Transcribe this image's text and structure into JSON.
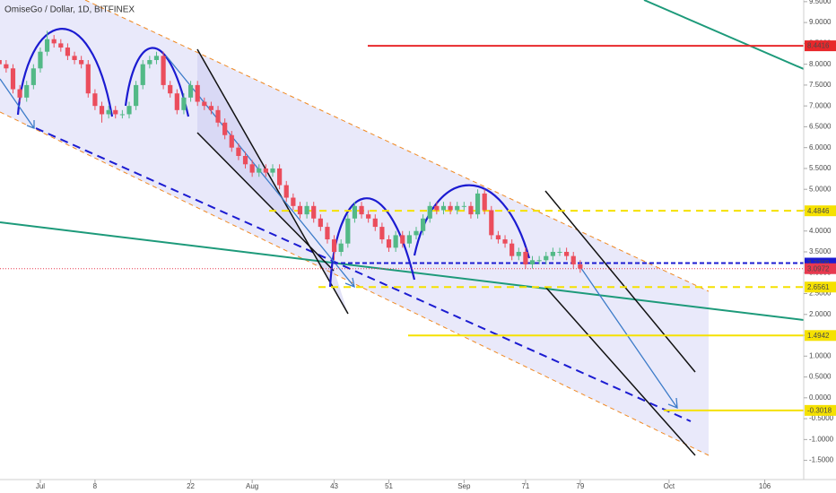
{
  "chart_data": {
    "type": "candlestick",
    "title": "OmiseGo / Dollar, 1D, BITFINEX",
    "up_color": "#53b987",
    "down_color": "#eb4d5c",
    "x": [
      -6,
      -5,
      -4,
      -3,
      -2,
      -1,
      0,
      1,
      2,
      3,
      4,
      5,
      6,
      7,
      8,
      9,
      10,
      11,
      12,
      13,
      14,
      15,
      16,
      17,
      18,
      19,
      20,
      21,
      22,
      23,
      24,
      25,
      26,
      27,
      28,
      29,
      30,
      31,
      32,
      33,
      34,
      35,
      36,
      37,
      38,
      39,
      40,
      41,
      42,
      43,
      44,
      45,
      46,
      47,
      48,
      49,
      50,
      51,
      52,
      53,
      54,
      55,
      56,
      57,
      58,
      59,
      60,
      61,
      62,
      63,
      64,
      65,
      66,
      67,
      68,
      69,
      70,
      71,
      72,
      73,
      74,
      75,
      76,
      77,
      78,
      79
    ],
    "open": [
      8.1,
      8.0,
      7.9,
      7.4,
      7.2,
      7.5,
      7.9,
      8.3,
      8.6,
      8.5,
      8.4,
      8.2,
      8.1,
      8.0,
      7.3,
      7.0,
      6.8,
      6.9,
      6.8,
      6.8,
      7.0,
      7.5,
      8.0,
      8.1,
      8.2,
      7.5,
      7.3,
      6.9,
      7.2,
      7.5,
      7.1,
      7.0,
      6.9,
      6.6,
      6.3,
      6.0,
      5.8,
      5.6,
      5.4,
      5.5,
      5.4,
      5.5,
      5.1,
      4.8,
      4.6,
      4.4,
      4.6,
      4.3,
      4.1,
      3.8,
      3.5,
      3.7,
      4.3,
      4.6,
      4.4,
      4.3,
      4.1,
      3.8,
      3.6,
      3.9,
      3.7,
      3.9,
      4.0,
      4.3,
      4.6,
      4.5,
      4.6,
      4.5,
      4.6,
      4.6,
      4.4,
      4.9,
      4.5,
      3.9,
      3.8,
      3.7,
      3.4,
      3.5,
      3.2,
      3.3,
      3.3,
      3.4,
      3.5,
      3.5,
      3.4,
      3.2
    ],
    "high": [
      8.2,
      8.1,
      8.0,
      7.5,
      7.6,
      8.0,
      8.4,
      8.8,
      8.7,
      8.6,
      8.5,
      8.3,
      8.2,
      8.1,
      7.4,
      7.1,
      7.0,
      7.0,
      6.9,
      7.1,
      7.6,
      8.1,
      8.2,
      8.3,
      8.3,
      7.6,
      7.4,
      7.3,
      7.6,
      7.6,
      7.2,
      7.1,
      7.0,
      6.7,
      6.4,
      6.1,
      5.9,
      5.7,
      5.6,
      5.6,
      5.6,
      5.6,
      5.2,
      4.9,
      4.7,
      4.7,
      4.7,
      4.4,
      4.2,
      3.9,
      3.8,
      4.4,
      4.7,
      4.7,
      4.5,
      4.4,
      4.2,
      3.9,
      4.0,
      4.0,
      4.0,
      4.1,
      4.4,
      4.7,
      4.7,
      4.7,
      4.7,
      4.7,
      4.7,
      4.7,
      5.0,
      5.0,
      4.6,
      4.0,
      3.9,
      3.8,
      3.6,
      3.6,
      3.4,
      3.4,
      3.5,
      3.6,
      3.6,
      3.6,
      3.5,
      3.3
    ],
    "low": [
      7.9,
      7.8,
      7.3,
      7.1,
      7.1,
      7.4,
      7.8,
      8.2,
      8.4,
      8.3,
      8.1,
      8.0,
      7.9,
      7.2,
      6.9,
      6.6,
      6.7,
      6.7,
      6.7,
      6.7,
      6.9,
      7.4,
      7.9,
      8.0,
      7.4,
      7.2,
      6.8,
      6.8,
      7.1,
      7.0,
      6.9,
      6.8,
      6.5,
      6.2,
      5.9,
      5.7,
      5.5,
      5.3,
      5.3,
      5.3,
      5.3,
      5.0,
      4.7,
      4.5,
      4.3,
      4.3,
      4.2,
      4.0,
      3.7,
      3.3,
      3.4,
      3.6,
      4.2,
      4.3,
      4.2,
      4.0,
      3.7,
      3.5,
      3.5,
      3.6,
      3.6,
      3.8,
      3.9,
      4.2,
      4.4,
      4.4,
      4.4,
      4.4,
      4.5,
      4.3,
      4.3,
      4.4,
      3.8,
      3.7,
      3.6,
      3.3,
      3.3,
      3.1,
      3.1,
      3.2,
      3.2,
      3.3,
      3.4,
      3.3,
      3.1,
      3.0
    ],
    "close": [
      8.0,
      7.9,
      7.4,
      7.2,
      7.5,
      7.9,
      8.3,
      8.6,
      8.5,
      8.4,
      8.2,
      8.1,
      8.0,
      7.3,
      7.0,
      6.8,
      6.9,
      6.8,
      6.8,
      7.0,
      7.5,
      8.0,
      8.1,
      8.2,
      7.5,
      7.3,
      6.9,
      7.2,
      7.5,
      7.1,
      7.0,
      6.9,
      6.6,
      6.3,
      6.0,
      5.8,
      5.6,
      5.4,
      5.5,
      5.4,
      5.5,
      5.1,
      4.8,
      4.6,
      4.4,
      4.6,
      4.3,
      4.1,
      3.8,
      3.5,
      3.7,
      4.3,
      4.6,
      4.4,
      4.3,
      4.1,
      3.8,
      3.6,
      3.9,
      3.7,
      3.9,
      4.0,
      4.3,
      4.6,
      4.5,
      4.6,
      4.5,
      4.6,
      4.6,
      4.4,
      4.9,
      4.5,
      3.9,
      3.8,
      3.7,
      3.4,
      3.5,
      3.2,
      3.3,
      3.3,
      3.4,
      3.5,
      3.5,
      3.4,
      3.2,
      3.1
    ],
    "xlim": [
      -5.9,
      111.7
    ],
    "xticks": [
      {
        "value": 0,
        "label": "Jul"
      },
      8,
      22,
      {
        "value": 31,
        "label": "Aug"
      },
      43,
      51,
      {
        "value": 62,
        "label": "Sep"
      },
      71,
      79,
      {
        "value": 92,
        "label": "Oct"
      },
      106
    ],
    "ylim": [
      -1.96,
      9.54
    ],
    "yticks": [
      {
        "value": -1.5,
        "label": "-1.5000"
      },
      {
        "value": -1,
        "label": "-1.0000"
      },
      {
        "value": -0.5,
        "label": "-0.5000"
      },
      {
        "value": 0,
        "label": "0.0000"
      },
      {
        "value": 0.5,
        "label": "0.5000"
      },
      {
        "value": 1,
        "label": "1.0000"
      },
      {
        "value": 1.5,
        "label": "1.5000"
      },
      {
        "value": 2,
        "label": "2.0000"
      },
      {
        "value": 2.5,
        "label": "2.5000"
      },
      {
        "value": 3,
        "label": "3.0000"
      },
      {
        "value": 3.5,
        "label": "3.5000"
      },
      {
        "value": 4,
        "label": "4.0000"
      },
      {
        "value": 4.5,
        "label": "4.5000"
      },
      {
        "value": 5,
        "label": "5.0000"
      },
      {
        "value": 5.5,
        "label": "5.5000"
      },
      {
        "value": 6,
        "label": "6.0000"
      },
      {
        "value": 6.5,
        "label": "6.5000"
      },
      {
        "value": 7,
        "label": "7.0000"
      },
      {
        "value": 7.5,
        "label": "7.5000"
      },
      {
        "value": 8,
        "label": "8.0000"
      },
      {
        "value": 8.5,
        "label": "8.5000"
      },
      {
        "value": 9,
        "label": "9.0000"
      },
      {
        "value": 9.5,
        "label": "9.5000"
      }
    ],
    "levels": [
      {
        "value": 8.4416,
        "color": "#e8282b"
      },
      {
        "value": 4.4846,
        "color": "#f5e100"
      },
      {
        "value": 3.2309,
        "color": "#1b1bd1"
      },
      {
        "value": 3.0972,
        "color": "#e8394f"
      },
      {
        "value": 2.6561,
        "color": "#f5e100"
      },
      {
        "value": 1.4942,
        "color": "#f5e100"
      },
      {
        "value": -0.3018,
        "color": "#f5e100"
      }
    ]
  }
}
